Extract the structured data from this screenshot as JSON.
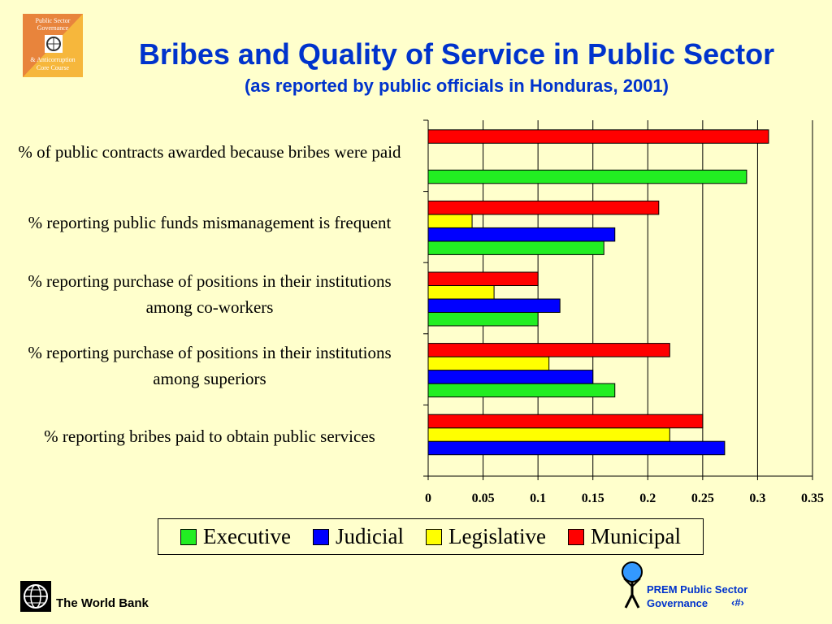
{
  "chart_data": {
    "type": "barh",
    "title": "Bribes and Quality of Service in Public Sector",
    "subtitle": "(as reported by public officials in Honduras, 2001)",
    "categories": [
      "% of public contracts awarded because bribes were paid",
      "% reporting public funds mismanagement is frequent",
      "% reporting purchase of positions in their institutions among co-workers",
      "% reporting purchase of positions in their institutions among superiors",
      "% reporting bribes paid to obtain public services"
    ],
    "series": [
      {
        "name": "Executive",
        "color": "#22ee22",
        "values": [
          0.29,
          0.16,
          0.1,
          0.17,
          null
        ]
      },
      {
        "name": "Judicial",
        "color": "#0000ff",
        "values": [
          null,
          0.17,
          0.12,
          0.15,
          0.27
        ]
      },
      {
        "name": "Legislative",
        "color": "#ffff00",
        "values": [
          null,
          0.04,
          0.06,
          0.11,
          0.22
        ]
      },
      {
        "name": "Municipal",
        "color": "#ff0000",
        "values": [
          0.31,
          0.21,
          0.1,
          0.22,
          0.25
        ]
      }
    ],
    "xlim": [
      0,
      0.35
    ],
    "xticks": [
      0,
      0.05,
      0.1,
      0.15,
      0.2,
      0.25,
      0.3,
      0.35
    ],
    "grid": true
  },
  "logo": {
    "line1": "Public Sector",
    "line2": "Governance",
    "line3": "& Anticorruption",
    "line4": "Core Course"
  },
  "footer": {
    "left": "The World Bank",
    "right1": "PREM Public Sector",
    "right2": "Governance",
    "page": "‹#›"
  }
}
